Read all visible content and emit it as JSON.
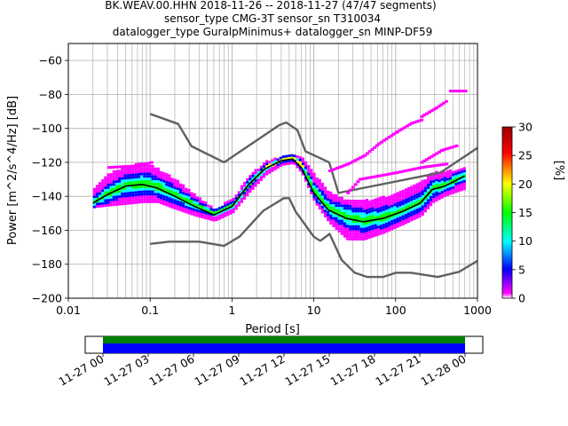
{
  "header": {
    "line1": "BK.WEAV.00.HHN   2018-11-26 -- 2018-11-27  (47/47 segments)",
    "line2": "sensor_type CMG-3T sensor_sn T310034",
    "line3": "datalogger_type GuralpMinimus+ datalogger_sn MINP-DF59"
  },
  "chart_data": {
    "type": "heatmap",
    "title": "BK.WEAV.00.HHN   2018-11-26 -- 2018-11-27  (47/47 segments)",
    "xlabel": "Period [s]",
    "ylabel": "Power [m^2/s^4/Hz] [dB]",
    "xscale": "log",
    "xlim": [
      0.01,
      1000
    ],
    "ylim": [
      -200,
      -50
    ],
    "grid": true,
    "x_ticks": [
      "0.01",
      "0.1",
      "1",
      "10",
      "100",
      "1000"
    ],
    "y_ticks": [
      "−60",
      "−80",
      "−100",
      "−120",
      "−140",
      "−160",
      "−180",
      "−200"
    ],
    "y_tick_values": [
      -60,
      -80,
      -100,
      -120,
      -140,
      -160,
      -180,
      -200
    ],
    "colorbar": {
      "label": "[%]",
      "range": [
        0,
        30
      ],
      "ticks": [
        "0",
        "5",
        "10",
        "15",
        "20",
        "25",
        "30"
      ],
      "colormap": [
        "#ffffff",
        "#ff00ff",
        "#0000ff",
        "#00ffff",
        "#00ff00",
        "#ffff00",
        "#ff0000",
        "#990000"
      ]
    },
    "series": [
      {
        "role": "mode",
        "color": "#000000",
        "x": [
          0.02,
          0.03,
          0.05,
          0.08,
          0.12,
          0.2,
          0.35,
          0.6,
          1.0,
          1.6,
          2.5,
          4.0,
          5.5,
          7.0,
          10,
          15,
          25,
          40,
          70,
          120,
          200,
          280,
          400,
          700
        ],
        "y": [
          -144,
          -139,
          -134,
          -133,
          -135,
          -140,
          -146,
          -151,
          -146,
          -133,
          -124,
          -119,
          -118,
          -123,
          -138,
          -148,
          -153,
          -155,
          -153,
          -149,
          -144,
          -136,
          -134,
          -128
        ]
      },
      {
        "role": "noise-model-high",
        "color": "#606060",
        "x": [
          0.1,
          0.22,
          0.32,
          0.8,
          3.8,
          4.6,
          6.3,
          7.9,
          15.4,
          20,
          354.8,
          1000
        ],
        "y": [
          -91.5,
          -97.4,
          -110.5,
          -120,
          -98,
          -96.5,
          -101,
          -113.5,
          -120,
          -138,
          -126,
          -111.5
        ]
      },
      {
        "role": "noise-model-low",
        "color": "#606060",
        "x": [
          0.1,
          0.17,
          0.4,
          0.8,
          1.24,
          2.4,
          4.3,
          5.0,
          6.0,
          10,
          12,
          15.6,
          21.9,
          31.6,
          45,
          70,
          101,
          154,
          328,
          600,
          1000
        ],
        "y": [
          -168,
          -166.7,
          -166.7,
          -169.2,
          -163.7,
          -148.6,
          -141.1,
          -141.1,
          -149,
          -163.8,
          -166.2,
          -162.1,
          -177.5,
          -185,
          -187.5,
          -187.5,
          -185,
          -185,
          -187.5,
          -184.4,
          -178
        ]
      }
    ],
    "density": [
      {
        "x": [
          0.02,
          0.03,
          0.05,
          0.08,
          0.12,
          0.2,
          0.35,
          0.6,
          1.0,
          1.6,
          2.5,
          4.0,
          5.5,
          7.0,
          10,
          15,
          25,
          40,
          70,
          120,
          200,
          280,
          400,
          700
        ],
        "low": [
          -147,
          -146,
          -145,
          -144,
          -144,
          -148,
          -152,
          -155,
          -150,
          -138,
          -128,
          -122,
          -121,
          -127,
          -144,
          -156,
          -166,
          -166,
          -162,
          -157,
          -152,
          -144,
          -140,
          -136
        ],
        "high": [
          -136,
          -127,
          -123,
          -121,
          -124,
          -131,
          -140,
          -148,
          -142,
          -128,
          -120,
          -117,
          -116,
          -118,
          -128,
          -138,
          -143,
          -143,
          -141,
          -137,
          -132,
          -126,
          -126,
          -124
        ]
      }
    ],
    "outlier_segments": [
      {
        "x": [
          0.03,
          0.07,
          0.1
        ],
        "y": [
          -123,
          -122,
          -120
        ]
      },
      {
        "x": [
          15,
          25,
          40,
          60,
          100,
          150,
          200
        ],
        "y": [
          -125,
          -121,
          -116,
          -109,
          -102,
          -97,
          -95
        ]
      },
      {
        "x": [
          200,
          300,
          400
        ],
        "y": [
          -93,
          -88,
          -84
        ]
      },
      {
        "x": [
          450,
          700
        ],
        "y": [
          -78,
          -78
        ]
      },
      {
        "x": [
          200,
          350,
          550
        ],
        "y": [
          -120,
          -113,
          -110
        ]
      },
      {
        "x": [
          25,
          35,
          60,
          100,
          200,
          400
        ],
        "y": [
          -138,
          -130,
          -128,
          -126,
          -123,
          -121
        ]
      }
    ]
  },
  "timeline": {
    "ticks": [
      "11-27 00",
      "11-27 03",
      "11-27 06",
      "11-27 09",
      "11-27 12",
      "11-27 15",
      "11-27 18",
      "11-27 21",
      "11-28 00"
    ],
    "bar_colors": {
      "top": "#008000",
      "bottom": "#0000ff"
    },
    "coverage": [
      {
        "start_hour": 0,
        "end_hour": 24
      }
    ]
  }
}
